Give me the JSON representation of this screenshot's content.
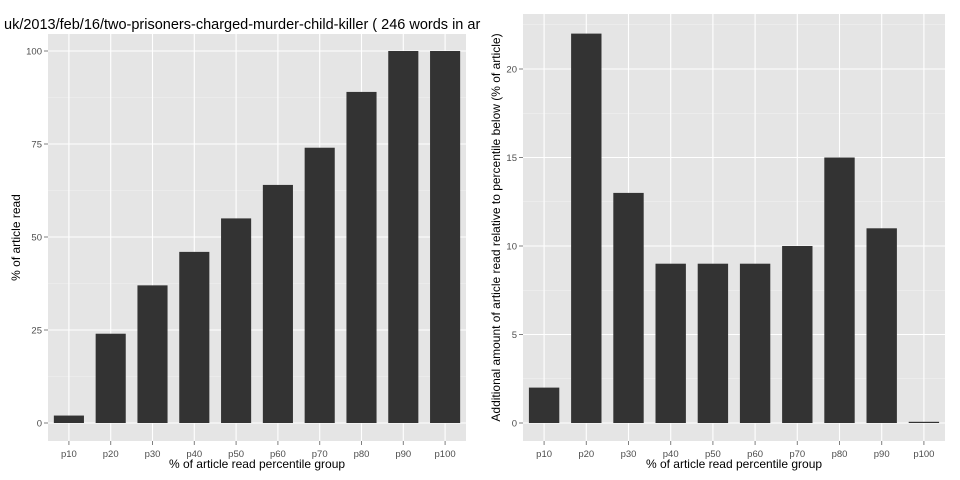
{
  "chart_data": [
    {
      "type": "bar",
      "title": "uk/2013/feb/16/two-prisoners-charged-murder-child-killer ( 246 words in ar",
      "xlabel": "% of article read percentile group",
      "ylabel": "% of article read",
      "categories": [
        "p10",
        "p20",
        "p30",
        "p40",
        "p50",
        "p60",
        "p70",
        "p80",
        "p90",
        "p100"
      ],
      "values": [
        2,
        24,
        37,
        46,
        55,
        64,
        74,
        89,
        100,
        100
      ],
      "ylim": [
        0,
        100
      ],
      "yticks": [
        "0",
        "25",
        "50",
        "75",
        "100"
      ],
      "grid": true,
      "legend": "none"
    },
    {
      "type": "bar",
      "title": "",
      "xlabel": "% of article read percentile group",
      "ylabel": "Additional amount of article read relative to percentile below (% of article)",
      "categories": [
        "p10",
        "p20",
        "p30",
        "p40",
        "p50",
        "p60",
        "p70",
        "p80",
        "p90",
        "p100"
      ],
      "values": [
        2,
        22,
        13,
        9,
        9,
        9,
        10,
        15,
        11,
        0
      ],
      "ylim": [
        0,
        22
      ],
      "yticks": [
        "0",
        "5",
        "10",
        "15",
        "20"
      ],
      "grid": true,
      "legend": "none"
    }
  ]
}
